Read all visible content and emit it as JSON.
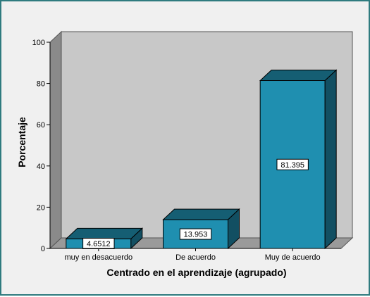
{
  "chart_data": {
    "type": "bar",
    "categories": [
      "muy en desacuerdo",
      "De acuerdo",
      "Muy de acuerdo"
    ],
    "values": [
      4.6512,
      13.953,
      81.395
    ],
    "data_labels": [
      "4.6512",
      "13.953",
      "81.395"
    ],
    "xlabel": "Centrado en el aprendizaje (agrupado)",
    "ylabel": "Porcentaje",
    "ylim": [
      0,
      100
    ],
    "yticks": [
      0,
      20,
      40,
      60,
      80,
      100
    ],
    "grid": false,
    "style": "3d",
    "colors": {
      "bar_front": "#1f8fb0",
      "bar_top": "#155e73",
      "bar_side": "#124f62",
      "wall": "#c8c8c8",
      "floor": "#9a9a9a",
      "left_wall": "#8a8a8a",
      "frame_border": "#2f7b7f"
    }
  }
}
